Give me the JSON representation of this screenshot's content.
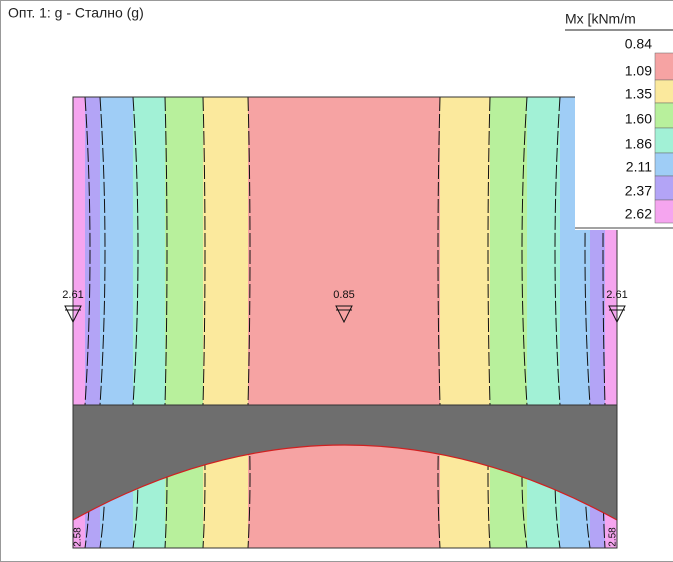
{
  "header": {
    "title": "Опт. 1: g - Стално (g)"
  },
  "legend": {
    "title": "Mx [kNm/m",
    "levels": [
      {
        "label": "0.84",
        "color": "#f6a3a3"
      },
      {
        "label": "1.09",
        "color": "#fbe99d"
      },
      {
        "label": "1.35",
        "color": "#b8f09c"
      },
      {
        "label": "1.60",
        "color": "#a2f1d6"
      },
      {
        "label": "1.86",
        "color": "#9fcdf6"
      },
      {
        "label": "2.11",
        "color": "#b3a4f6"
      },
      {
        "label": "2.37",
        "color": "#f5a5ef"
      },
      {
        "label": "2.62",
        "color": "#f5a5ef"
      }
    ]
  },
  "supports": [
    {
      "label": "2.61"
    },
    {
      "label": "0.85"
    },
    {
      "label": "2.61"
    }
  ],
  "edge_labels": [
    {
      "label": "2.58"
    },
    {
      "label": "2.58"
    }
  ]
}
